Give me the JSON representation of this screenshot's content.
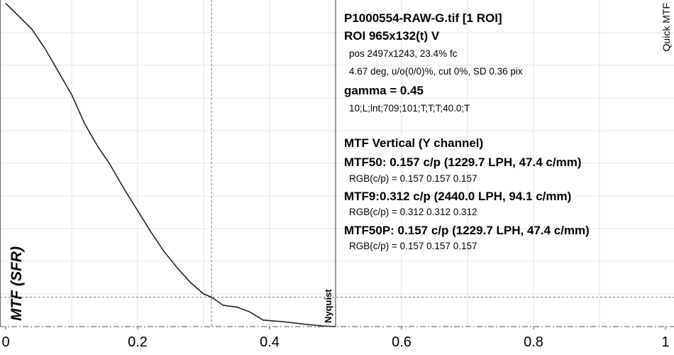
{
  "chart_data": {
    "type": "line",
    "x": [
      0,
      0.02,
      0.04,
      0.06,
      0.08,
      0.1,
      0.12,
      0.14,
      0.157,
      0.18,
      0.2,
      0.22,
      0.24,
      0.26,
      0.28,
      0.3,
      0.312,
      0.33,
      0.35,
      0.37,
      0.39,
      0.42,
      0.45,
      0.48,
      0.5
    ],
    "series": [
      {
        "color": "#222222",
        "values": [
          0.99,
          0.95,
          0.91,
          0.85,
          0.78,
          0.71,
          0.62,
          0.55,
          0.5,
          0.42,
          0.355,
          0.29,
          0.23,
          0.18,
          0.135,
          0.1,
          0.09,
          0.065,
          0.06,
          0.045,
          0.02,
          0.015,
          0.008,
          0.002,
          0.0
        ]
      }
    ],
    "xlim": [
      0,
      1
    ],
    "ylim": [
      0,
      1
    ],
    "xticks": [
      0,
      0.2,
      0.4,
      0.6,
      0.8,
      1
    ],
    "grid_x": [
      0.1,
      0.2,
      0.3,
      0.4,
      0.5,
      0.6,
      0.7,
      0.8,
      0.9
    ],
    "grid_y": [
      0.1,
      0.2,
      0.3,
      0.4,
      0.5,
      0.6,
      0.7,
      0.8,
      0.9
    ],
    "y_label": "MTF (SFR)",
    "corner_label": "Quick MTF",
    "nyquist": {
      "label": "Nyquist",
      "x": 0.5
    },
    "reference_lines": {
      "x": 0.312,
      "y": 0.09
    },
    "info": {
      "file": "P1000554-RAW-G.tif [1 ROI]",
      "roi": "ROI 965x132(t) V",
      "pos": "pos 2497x1243, 23.4% fc",
      "deg": "4.67 deg, u/o(0/0)%, cut 0%, SD 0.36 pix",
      "gamma": "gamma = 0.45",
      "params": "10;L;lnt;709;101;T;T;T;40.0;T",
      "mtf_title": "MTF Vertical (Y channel)",
      "mtf50": "MTF50: 0.157 c/p (1229.7 LPH, 47.4 c/mm)",
      "mtf50_rgb": "RGB(c/p) = 0.157 0.157 0.157",
      "mtf9": "MTF9:0.312 c/p (2440.0 LPH, 94.1 c/mm)",
      "mtf9_rgb": "RGB(c/p) = 0.312 0.312 0.312",
      "mtf50p": "MTF50P: 0.157 c/p (1229.7 LPH, 47.4 c/mm)",
      "mtf50p_rgb": "RGB(c/p) = 0.157 0.157 0.157"
    }
  }
}
